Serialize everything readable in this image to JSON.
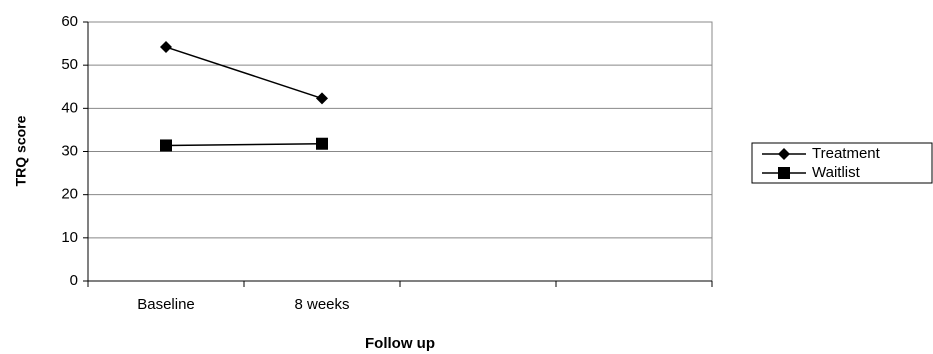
{
  "chart_data": {
    "type": "line",
    "xlabel": "Follow up",
    "ylabel": "TRQ score",
    "categories": [
      "Baseline",
      "8 weeks",
      null,
      null
    ],
    "series": [
      {
        "name": "Treatment",
        "color": "#000000",
        "marker": "diamond",
        "values": [
          54.2,
          42.3,
          null,
          null
        ]
      },
      {
        "name": "Waitlist",
        "color": "#000000",
        "marker": "square",
        "values": [
          31.4,
          31.8,
          null,
          null
        ]
      }
    ],
    "ylim": [
      0,
      60
    ],
    "yticks": [
      0,
      10,
      20,
      30,
      40,
      50,
      60
    ],
    "grid": true,
    "legend": "right"
  }
}
